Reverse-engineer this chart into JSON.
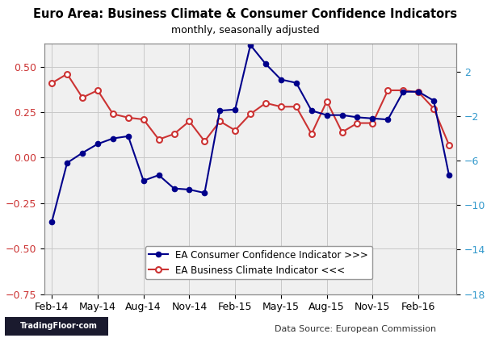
{
  "title": "Euro Area: Business Climate & Consumer Confidence Indicators",
  "subtitle": "monthly, seasonally adjusted",
  "datasource": "Data Source: European Commission",
  "x_labels": [
    "Feb-14",
    "May-14",
    "Aug-14",
    "Nov-14",
    "Feb-15",
    "May-15",
    "Aug-15",
    "Nov-15",
    "Feb-16"
  ],
  "consumer_confidence": {
    "label": "EA Consumer Confidence Indicator >>>",
    "color": "#00008B",
    "marker": "o",
    "values": [
      -11.5,
      -6.2,
      -5.3,
      -4.5,
      -4.0,
      -3.8,
      -7.8,
      -7.3,
      -8.5,
      -8.6,
      -8.9,
      -1.5,
      -1.4,
      4.4,
      2.7,
      1.3,
      1.0,
      -1.5,
      -1.9,
      -1.9,
      -2.1,
      -2.2,
      -2.3,
      0.2,
      0.2,
      -0.6,
      -7.3
    ]
  },
  "business_climate": {
    "label": "EA Business Climate Indicator <<<",
    "color": "#CC3333",
    "marker": "o",
    "values": [
      0.41,
      0.46,
      0.33,
      0.37,
      0.24,
      0.22,
      0.21,
      0.1,
      0.13,
      0.2,
      0.09,
      0.2,
      0.15,
      0.24,
      0.3,
      0.28,
      0.28,
      0.13,
      0.31,
      0.14,
      0.19,
      0.19,
      0.37,
      0.37,
      0.36,
      0.27,
      0.07
    ]
  },
  "left_ylim": [
    -18.0,
    4.5
  ],
  "left_yticks": [
    -18,
    -14,
    -10,
    -6,
    -2,
    2
  ],
  "left_yticklabels": [
    "-18",
    "-14",
    "-10",
    "-6",
    "-2",
    "2"
  ],
  "right_ylim": [
    -0.75,
    0.625
  ],
  "right_yticks": [
    -0.75,
    -0.5,
    -0.25,
    0.0,
    0.25,
    0.5
  ],
  "right_yticklabels": [
    "-0.75",
    "-0.50",
    "-0.25",
    "0.00",
    "0.25",
    "0.50"
  ],
  "x_tick_positions": [
    0,
    3,
    6,
    9,
    12,
    15,
    18,
    21,
    24
  ],
  "n_points": 27,
  "background_color": "#FFFFFF",
  "plot_bg_color": "#F0F0F0",
  "grid_color": "#C8C8C8",
  "left_tick_color": "#3399CC",
  "right_tick_color": "#CC3333",
  "border_color": "#888888",
  "logo_bg": "#1A1A2E",
  "logo_text_color": "#FFFFFF"
}
